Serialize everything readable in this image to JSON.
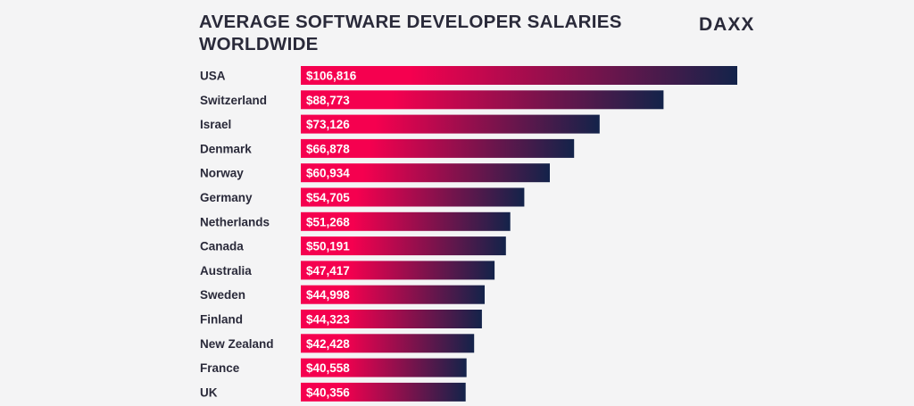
{
  "chart_data": {
    "type": "bar",
    "orientation": "horizontal",
    "title_lines": [
      "AVERAGE SOFTWARE DEVELOPER SALARIES",
      "WORLDWIDE"
    ],
    "categories": [
      "USA",
      "Switzerland",
      "Israel",
      "Denmark",
      "Norway",
      "Germany",
      "Netherlands",
      "Canada",
      "Australia",
      "Sweden",
      "Finland",
      "New Zealand",
      "France",
      "UK"
    ],
    "values": [
      106816,
      88773,
      73126,
      66878,
      60934,
      54705,
      51268,
      50191,
      47417,
      44998,
      44323,
      42428,
      40558,
      40356
    ],
    "value_labels": [
      "$106,816",
      "$88,773",
      "$73,126",
      "$66,878",
      "$60,934",
      "$54,705",
      "$51,268",
      "$50,191",
      "$47,417",
      "$44,998",
      "$44,323",
      "$42,428",
      "$40,558",
      "$40,356"
    ],
    "xlim": [
      0,
      106816
    ],
    "grid": false,
    "legend": "none",
    "colors": {
      "bar_start": "#f5004f",
      "bar_end": "#13234a"
    }
  },
  "brand": {
    "logo_text": "DAXX",
    "logo_color": "#2a2a3a"
  }
}
